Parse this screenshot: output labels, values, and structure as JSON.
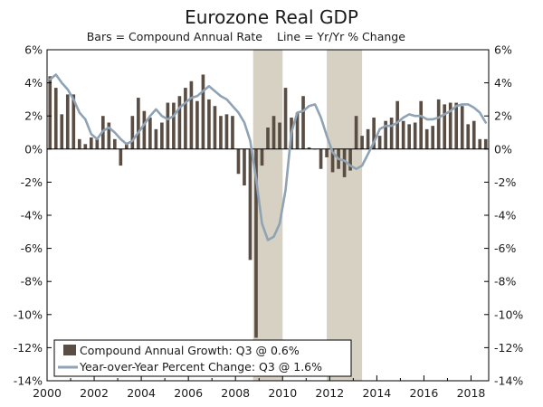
{
  "chart_data": {
    "type": "bar",
    "title": "Eurozone Real GDP",
    "subtitle_left": "Bars = Compound Annual Rate",
    "subtitle_right": "Line = Yr/Yr % Change",
    "ylim": [
      -14,
      6
    ],
    "yticks": [
      6,
      4,
      2,
      0,
      -2,
      -4,
      -6,
      -8,
      -10,
      -12,
      -14
    ],
    "ytick_labels": [
      "6%",
      "4%",
      "2%",
      "0%",
      "-2%",
      "-4%",
      "-6%",
      "-8%",
      "-10%",
      "-12%",
      "-14%"
    ],
    "xlim": [
      2000.0,
      2018.75
    ],
    "xticks": [
      2000,
      2002,
      2004,
      2006,
      2008,
      2010,
      2012,
      2014,
      2016,
      2018
    ],
    "xtick_labels": [
      "2000",
      "2002",
      "2004",
      "2006",
      "2008",
      "2010",
      "2012",
      "2014",
      "2016",
      "2018"
    ],
    "grid": false,
    "legend_position": "bottom-left",
    "recessions": [
      [
        2008.75,
        2010.0
      ],
      [
        2011.875,
        2013.375
      ]
    ],
    "series": [
      {
        "name": "Compound Annual Growth: Q3 @ 0.6%",
        "kind": "bar",
        "color": "#5a4e44",
        "x": [
          2000.0,
          2000.25,
          2000.5,
          2000.75,
          2001.0,
          2001.25,
          2001.5,
          2001.75,
          2002.0,
          2002.25,
          2002.5,
          2002.75,
          2003.0,
          2003.25,
          2003.5,
          2003.75,
          2004.0,
          2004.25,
          2004.5,
          2004.75,
          2005.0,
          2005.25,
          2005.5,
          2005.75,
          2006.0,
          2006.25,
          2006.5,
          2006.75,
          2007.0,
          2007.25,
          2007.5,
          2007.75,
          2008.0,
          2008.25,
          2008.5,
          2008.75,
          2009.0,
          2009.25,
          2009.5,
          2009.75,
          2010.0,
          2010.25,
          2010.5,
          2010.75,
          2011.0,
          2011.25,
          2011.5,
          2011.75,
          2012.0,
          2012.25,
          2012.5,
          2012.75,
          2013.0,
          2013.25,
          2013.5,
          2013.75,
          2014.0,
          2014.25,
          2014.5,
          2014.75,
          2015.0,
          2015.25,
          2015.5,
          2015.75,
          2016.0,
          2016.25,
          2016.5,
          2016.75,
          2017.0,
          2017.25,
          2017.5,
          2017.75,
          2018.0,
          2018.25,
          2018.5
        ],
        "values": [
          4.4,
          3.7,
          2.1,
          3.3,
          3.3,
          0.6,
          0.3,
          0.7,
          0.6,
          2.0,
          1.6,
          0.6,
          -1.0,
          0.4,
          2.0,
          3.1,
          2.3,
          1.9,
          1.2,
          1.6,
          2.8,
          2.8,
          3.2,
          3.7,
          4.1,
          2.9,
          4.5,
          3.0,
          2.6,
          2.0,
          2.1,
          2.0,
          -1.5,
          -2.2,
          -6.7,
          -11.4,
          -1.0,
          1.3,
          2.0,
          1.6,
          3.7,
          1.9,
          2.2,
          3.2,
          0.1,
          0.0,
          -1.2,
          -0.5,
          -1.4,
          -1.2,
          -1.7,
          -1.3,
          2.0,
          0.8,
          1.2,
          1.9,
          0.8,
          1.7,
          1.9,
          2.9,
          1.7,
          1.5,
          1.6,
          2.9,
          1.2,
          1.4,
          3.0,
          2.7,
          2.8,
          2.8,
          2.6,
          1.5,
          1.7,
          0.6,
          0.6
        ]
      },
      {
        "name": "Year-over-Year Percent Change: Q3 @ 1.6%",
        "kind": "line",
        "color": "#8fa3b5",
        "x": [
          2000.0,
          2000.25,
          2000.5,
          2000.75,
          2001.0,
          2001.25,
          2001.5,
          2001.75,
          2002.0,
          2002.25,
          2002.5,
          2002.75,
          2003.0,
          2003.25,
          2003.5,
          2003.75,
          2004.0,
          2004.25,
          2004.5,
          2004.75,
          2005.0,
          2005.25,
          2005.5,
          2005.75,
          2006.0,
          2006.25,
          2006.5,
          2006.75,
          2007.0,
          2007.25,
          2007.5,
          2007.75,
          2008.0,
          2008.25,
          2008.5,
          2008.75,
          2009.0,
          2009.25,
          2009.5,
          2009.75,
          2010.0,
          2010.25,
          2010.5,
          2010.75,
          2011.0,
          2011.25,
          2011.5,
          2011.75,
          2012.0,
          2012.25,
          2012.5,
          2012.75,
          2013.0,
          2013.25,
          2013.5,
          2013.75,
          2014.0,
          2014.25,
          2014.5,
          2014.75,
          2015.0,
          2015.25,
          2015.5,
          2015.75,
          2016.0,
          2016.25,
          2016.5,
          2016.75,
          2017.0,
          2017.25,
          2017.5,
          2017.75,
          2018.0,
          2018.25,
          2018.5
        ],
        "values": [
          4.2,
          4.5,
          4.0,
          3.6,
          3.0,
          2.2,
          1.8,
          0.9,
          0.6,
          1.1,
          1.3,
          1.0,
          0.6,
          0.3,
          0.5,
          1.0,
          1.5,
          2.0,
          2.4,
          2.0,
          1.8,
          2.0,
          2.5,
          2.8,
          3.1,
          3.2,
          3.5,
          3.8,
          3.5,
          3.2,
          3.0,
          2.6,
          2.2,
          1.6,
          0.5,
          -1.8,
          -4.5,
          -5.5,
          -5.3,
          -4.5,
          -2.5,
          1.0,
          2.2,
          2.3,
          2.6,
          2.7,
          1.9,
          0.8,
          -0.2,
          -0.6,
          -0.7,
          -1.0,
          -1.2,
          -1.0,
          -0.3,
          0.4,
          1.2,
          1.4,
          1.4,
          1.6,
          1.9,
          2.1,
          2.0,
          2.0,
          1.8,
          1.8,
          1.9,
          2.1,
          2.3,
          2.6,
          2.7,
          2.7,
          2.5,
          2.2,
          1.6
        ]
      }
    ]
  }
}
